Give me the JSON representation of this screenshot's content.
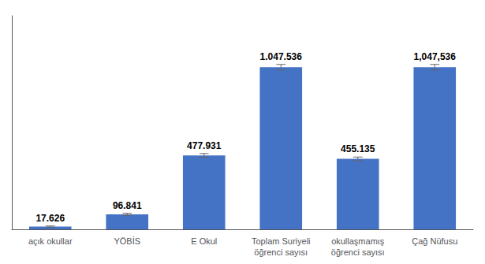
{
  "chart_data": {
    "type": "bar",
    "categories": [
      "açık okullar",
      "YÖBİS",
      "E Okul",
      "Toplam Suriyeli\nöğrenci sayısı",
      "okullaşmamış\nöğrenci sayısı",
      "Çağ Nüfusu"
    ],
    "values": [
      17626,
      96841,
      477931,
      1047536,
      455135,
      1047536
    ],
    "value_labels": [
      "17.626",
      "96.841",
      "477.931",
      "1.047.536",
      "455.135",
      "1,047,536"
    ],
    "errors": [
      4000,
      7000,
      12000,
      18000,
      12000,
      18000
    ],
    "color": "#4472C4",
    "ylim": [
      0,
      1380000
    ],
    "grid": false,
    "data_labels": true,
    "tick_labels": "x"
  }
}
